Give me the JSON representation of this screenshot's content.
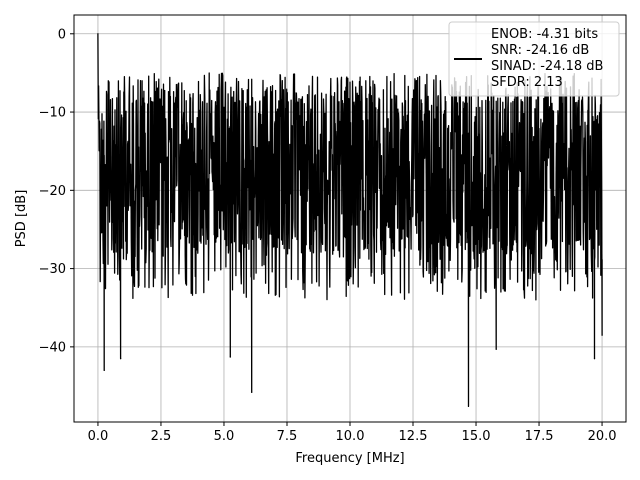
{
  "chart_data": {
    "type": "line",
    "title": "",
    "xlabel": "Frequency [MHz]",
    "ylabel": "PSD [dB]",
    "xlim": [
      -0.95,
      20.95
    ],
    "ylim": [
      -49.6,
      2.4
    ],
    "x_ticks": [
      0.0,
      2.5,
      5.0,
      7.5,
      10.0,
      12.5,
      15.0,
      17.5,
      20.0
    ],
    "x_tick_labels": [
      "0.0",
      "2.5",
      "5.0",
      "7.5",
      "10.0",
      "12.5",
      "15.0",
      "17.5",
      "20.0"
    ],
    "y_ticks": [
      0,
      -10,
      -20,
      -30,
      -40
    ],
    "y_tick_labels": [
      "0",
      "−10",
      "−20",
      "−30",
      "−40"
    ],
    "grid": true,
    "legend_position": "top-right",
    "line_color": "#000000",
    "series": [
      {
        "name": "ENOB: -4.31 bits\nSNR: -24.16 dB\nSINAD: -24.18 dB\nSFDR: 2.13",
        "description": "dense noisy power spectral density trace",
        "x_range": [
          0.0,
          20.0
        ],
        "upper_envelope_approx": -5,
        "lower_envelope_approx": -30,
        "peaks": [
          {
            "x": 0.0,
            "y": 0.0
          }
        ],
        "notable_dips": [
          {
            "x": 0.25,
            "y": -43
          },
          {
            "x": 0.9,
            "y": -41.5
          },
          {
            "x": 5.25,
            "y": -41.3
          },
          {
            "x": 6.1,
            "y": -45.8
          },
          {
            "x": 14.7,
            "y": -47.6
          },
          {
            "x": 15.8,
            "y": -40.3
          },
          {
            "x": 19.7,
            "y": -41.5
          },
          {
            "x": 20.0,
            "y": -38.5
          }
        ]
      }
    ]
  },
  "legend": {
    "lines": [
      "ENOB: -4.31 bits",
      "SNR: -24.16 dB",
      "SINAD: -24.18 dB",
      "SFDR: 2.13"
    ]
  }
}
